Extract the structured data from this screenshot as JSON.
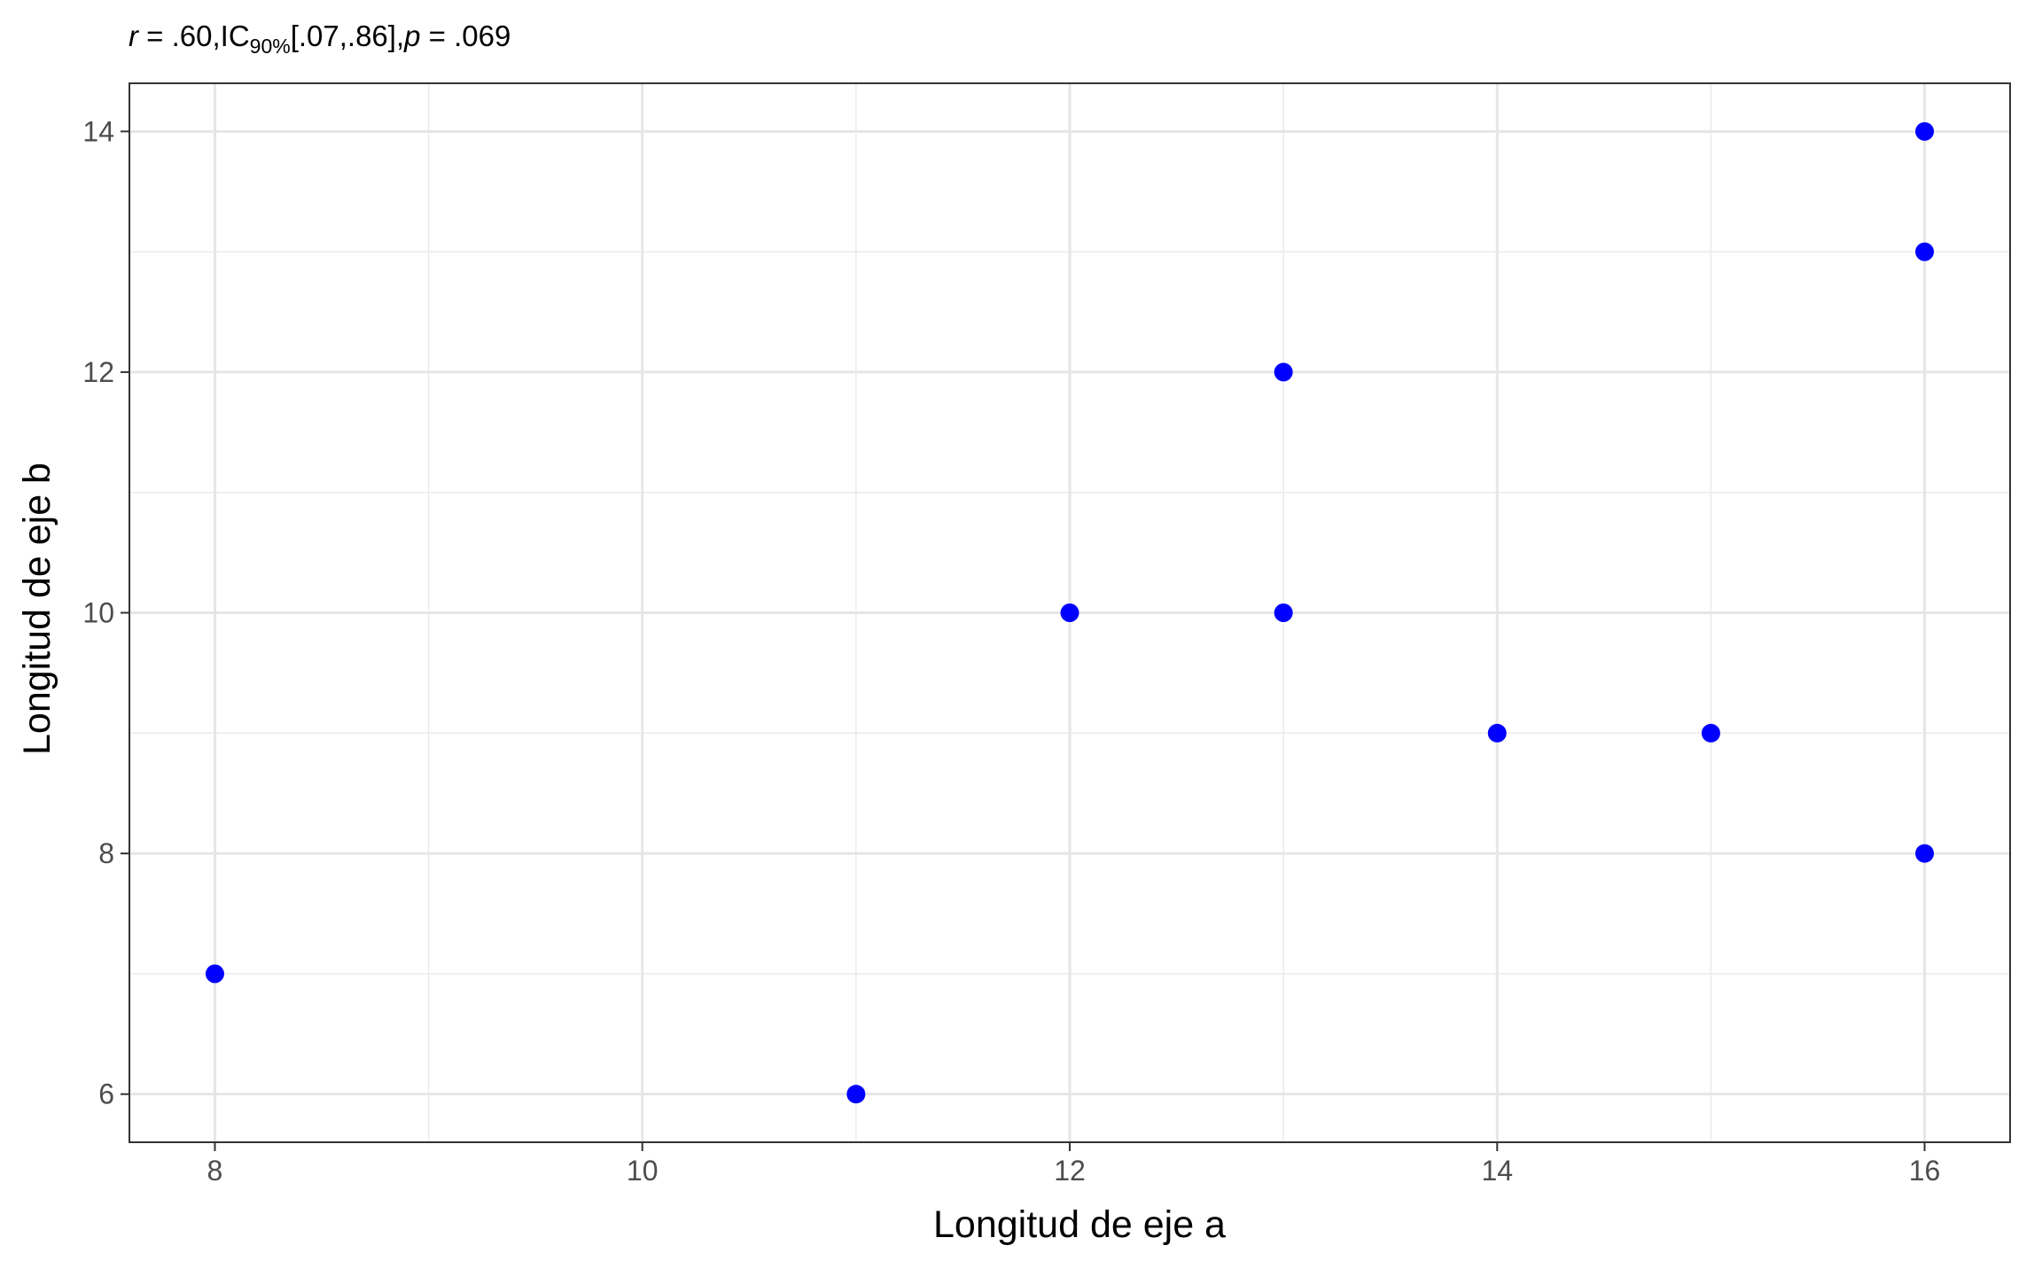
{
  "chart_data": {
    "type": "scatter",
    "subtitle": {
      "r_symbol": "r",
      "r_value": " = .60,",
      "ci_label": "IC",
      "ci_subscript": "90%",
      "ci_value": "[.07,.86],",
      "p_symbol": "p",
      "p_value": " = .069"
    },
    "xlabel": "Longitud de eje a",
    "ylabel": "Longitud de eje b",
    "xlim": [
      7.6,
      16.4
    ],
    "ylim": [
      5.6,
      14.4
    ],
    "x_ticks": [
      8,
      10,
      12,
      14,
      16
    ],
    "x_tick_labels": [
      "8",
      "10",
      "12",
      "14",
      "16"
    ],
    "y_ticks": [
      6,
      8,
      10,
      12,
      14
    ],
    "y_tick_labels": [
      "6",
      "8",
      "10",
      "12",
      "14"
    ],
    "x_minor": [
      9,
      11,
      13,
      15
    ],
    "y_minor": [
      7,
      9,
      11,
      13
    ],
    "grid": true,
    "legend": "none",
    "point_color": "#0000ff",
    "points": [
      {
        "x": 8,
        "y": 7
      },
      {
        "x": 11,
        "y": 6
      },
      {
        "x": 12,
        "y": 10
      },
      {
        "x": 13,
        "y": 12
      },
      {
        "x": 13,
        "y": 10
      },
      {
        "x": 14,
        "y": 9
      },
      {
        "x": 15,
        "y": 9
      },
      {
        "x": 16,
        "y": 14
      },
      {
        "x": 16,
        "y": 13
      },
      {
        "x": 16,
        "y": 8
      }
    ]
  }
}
